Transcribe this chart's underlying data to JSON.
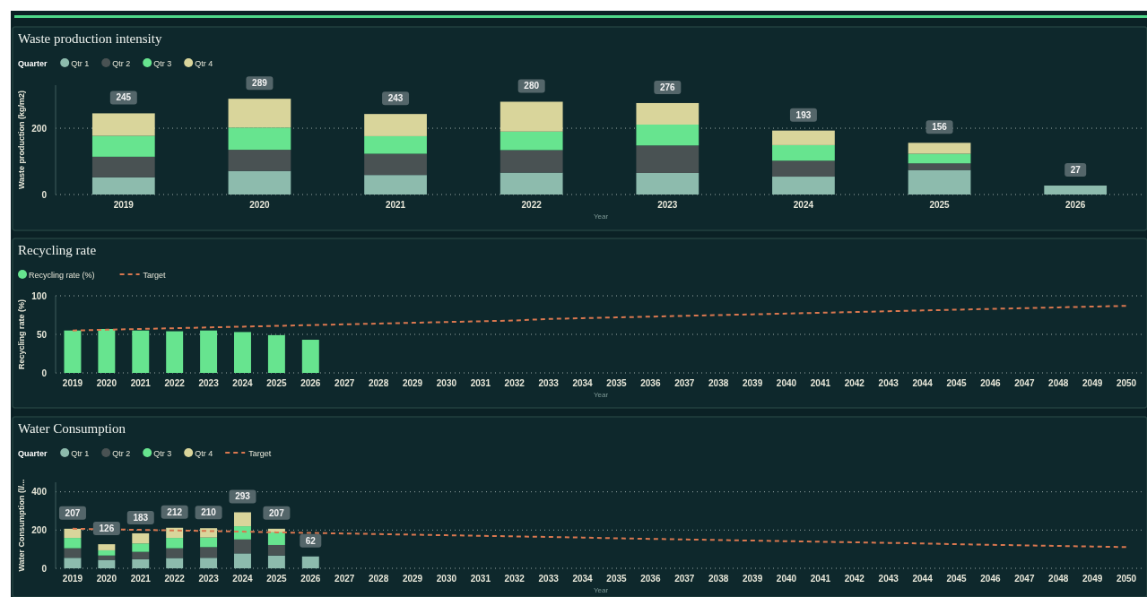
{
  "chart_data": [
    {
      "type": "bar",
      "title": "Waste production intensity",
      "ylabel": "Waste production (kg/m2)",
      "xlabel": "Year",
      "legend_title": "Quarter",
      "legend": "top left",
      "stacked": true,
      "grid": "y",
      "categories": [
        "2019",
        "2020",
        "2021",
        "2022",
        "2023",
        "2024",
        "2025",
        "2026"
      ],
      "series": [
        {
          "name": "Qtr 1",
          "color": "#8dbbad",
          "values": [
            52,
            71,
            59,
            66,
            65,
            54,
            74,
            27
          ]
        },
        {
          "name": "Qtr 2",
          "color": "#495253",
          "values": [
            62,
            64,
            64,
            68,
            83,
            48,
            20,
            null
          ]
        },
        {
          "name": "Qtr 3",
          "color": "#67e48f",
          "values": [
            63,
            67,
            53,
            56,
            63,
            47,
            29,
            null
          ]
        },
        {
          "name": "Qtr 4",
          "color": "#d9d59b",
          "values": [
            68,
            87,
            67,
            90,
            65,
            44,
            33,
            null
          ]
        }
      ],
      "totals": [
        "245",
        "289",
        "243",
        "280",
        "276",
        "193",
        "156",
        "27"
      ],
      "ylim": [
        0,
        330
      ],
      "yticks": [
        0,
        200
      ]
    },
    {
      "type": "bar",
      "title": "Recycling rate",
      "ylabel": "Recycling rate (%)",
      "xlabel": "Year",
      "legend": "top left",
      "grid": "y",
      "categories": [
        "2019",
        "2020",
        "2021",
        "2022",
        "2023",
        "2024",
        "2025",
        "2026",
        "2027",
        "2028",
        "2029",
        "2030",
        "2031",
        "2032",
        "2033",
        "2034",
        "2035",
        "2036",
        "2037",
        "2038",
        "2039",
        "2040",
        "2041",
        "2042",
        "2043",
        "2044",
        "2045",
        "2046",
        "2047",
        "2048",
        "2049",
        "2050"
      ],
      "series": [
        {
          "name": "Recycling rate (%)",
          "type": "bar",
          "color": "#67e48f",
          "values": [
            55,
            57,
            55,
            54,
            55,
            53,
            49,
            43,
            null,
            null,
            null,
            null,
            null,
            null,
            null,
            null,
            null,
            null,
            null,
            null,
            null,
            null,
            null,
            null,
            null,
            null,
            null,
            null,
            null,
            null,
            null,
            null
          ]
        },
        {
          "name": "Target",
          "type": "line",
          "line_style": "dashed",
          "color": "#d9774f",
          "values": [
            55,
            56,
            57,
            58,
            59,
            60,
            61,
            62,
            63,
            64,
            65,
            66,
            67,
            68,
            70,
            71,
            72,
            73,
            74,
            75,
            76,
            77,
            78,
            79,
            80,
            81,
            82,
            83,
            84,
            85,
            86,
            87
          ]
        }
      ],
      "ylim": [
        0,
        100
      ],
      "yticks": [
        0,
        50,
        100
      ]
    },
    {
      "type": "bar",
      "title": "Water Consumption",
      "ylabel": "Water Consumption (l/...",
      "xlabel": "Year",
      "legend_title": "Quarter",
      "legend": "top left",
      "stacked": true,
      "grid": "y",
      "categories": [
        "2019",
        "2020",
        "2021",
        "2022",
        "2023",
        "2024",
        "2025",
        "2026",
        "2027",
        "2028",
        "2029",
        "2030",
        "2031",
        "2032",
        "2033",
        "2034",
        "2035",
        "2036",
        "2037",
        "2038",
        "2039",
        "2040",
        "2041",
        "2042",
        "2043",
        "2044",
        "2045",
        "2046",
        "2047",
        "2048",
        "2049",
        "2050"
      ],
      "series": [
        {
          "name": "Qtr 1",
          "type": "bar",
          "color": "#8dbbad",
          "values": [
            55,
            44,
            48,
            54,
            55,
            78,
            67,
            62,
            null,
            null,
            null,
            null,
            null,
            null,
            null,
            null,
            null,
            null,
            null,
            null,
            null,
            null,
            null,
            null,
            null,
            null,
            null,
            null,
            null,
            null,
            null,
            null
          ]
        },
        {
          "name": "Qtr 2",
          "type": "bar",
          "color": "#495253",
          "values": [
            50,
            23,
            38,
            51,
            56,
            73,
            55,
            null,
            null,
            null,
            null,
            null,
            null,
            null,
            null,
            null,
            null,
            null,
            null,
            null,
            null,
            null,
            null,
            null,
            null,
            null,
            null,
            null,
            null,
            null,
            null,
            null
          ]
        },
        {
          "name": "Qtr 3",
          "type": "bar",
          "color": "#67e48f",
          "values": [
            54,
            27,
            44,
            54,
            50,
            69,
            66,
            null,
            null,
            null,
            null,
            null,
            null,
            null,
            null,
            null,
            null,
            null,
            null,
            null,
            null,
            null,
            null,
            null,
            null,
            null,
            null,
            null,
            null,
            null,
            null,
            null
          ]
        },
        {
          "name": "Qtr 4",
          "type": "bar",
          "color": "#d9d59b",
          "values": [
            48,
            32,
            53,
            53,
            49,
            73,
            19,
            null,
            null,
            null,
            null,
            null,
            null,
            null,
            null,
            null,
            null,
            null,
            null,
            null,
            null,
            null,
            null,
            null,
            null,
            null,
            null,
            null,
            null,
            null,
            null,
            null
          ]
        },
        {
          "name": "Target",
          "type": "line",
          "line_style": "dashed",
          "color": "#d9774f",
          "values": [
            207,
            204,
            201,
            198,
            195,
            192,
            188,
            185,
            182,
            179,
            176,
            173,
            170,
            167,
            164,
            161,
            157,
            154,
            151,
            148,
            145,
            142,
            139,
            136,
            133,
            130,
            126,
            123,
            120,
            117,
            114,
            111
          ]
        }
      ],
      "totals": [
        "207",
        "126",
        "183",
        "212",
        "210",
        "293",
        "207",
        "62",
        null,
        null,
        null,
        null,
        null,
        null,
        null,
        null,
        null,
        null,
        null,
        null,
        null,
        null,
        null,
        null,
        null,
        null,
        null,
        null,
        null,
        null,
        null,
        null
      ],
      "ylim": [
        0,
        450
      ],
      "yticks": [
        0,
        200,
        400
      ]
    }
  ]
}
